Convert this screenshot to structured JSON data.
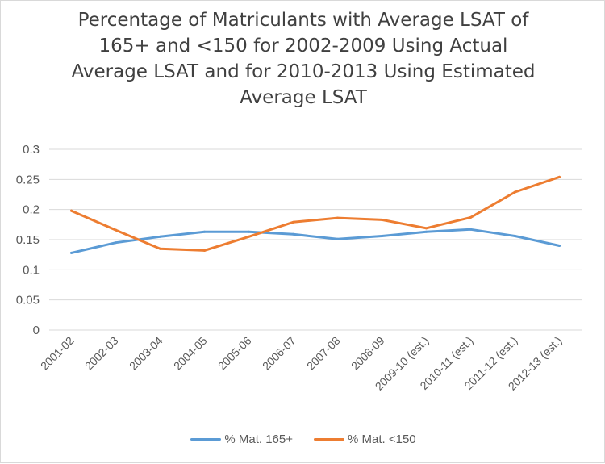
{
  "chart_data": {
    "type": "line",
    "title_lines": [
      "Percentage of Matriculants with Average LSAT of",
      "165+ and <150 for 2002-2009 Using Actual",
      "Average LSAT and for 2010-2013 Using Estimated",
      "Average LSAT"
    ],
    "categories": [
      "2001-02",
      "2002-03",
      "2003-04",
      "2004-05",
      "2005-06",
      "2006-07",
      "2007-08",
      "2008-09",
      "2009-10 (est.)",
      "2010-11 (est.)",
      "2011-12 (est.)",
      "2012-13 (est.)"
    ],
    "ylim": [
      0,
      0.3
    ],
    "yticks": [
      "0",
      "0.05",
      "0.1",
      "0.15",
      "0.2",
      "0.25",
      "0.3"
    ],
    "grid": true,
    "legend_position": "bottom",
    "series": [
      {
        "name": "% Mat. 165+",
        "color": "#5b9bd5",
        "values": [
          0.128,
          0.145,
          0.155,
          0.163,
          0.163,
          0.159,
          0.151,
          0.156,
          0.163,
          0.167,
          0.156,
          0.14
        ]
      },
      {
        "name": "% Mat. <150",
        "color": "#ed7d31",
        "values": [
          0.198,
          0.166,
          0.135,
          0.132,
          0.155,
          0.179,
          0.186,
          0.183,
          0.169,
          0.187,
          0.229,
          0.254
        ]
      }
    ]
  }
}
